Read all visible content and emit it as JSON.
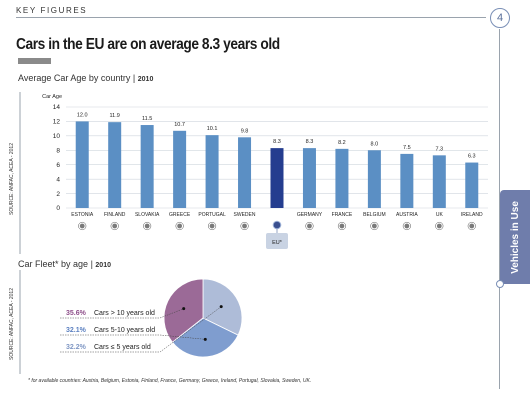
{
  "header": {
    "section_label": "KEY FIGURES",
    "page_number": "4"
  },
  "title": "Cars in the EU are on average 8.3 years old",
  "side_tab": "Vehicles in Use",
  "bar_chart": {
    "title": "Average Car Age by country",
    "year": "2010",
    "ylabel": "Car Age",
    "source": "SOURCE: ANFAC, ACEA - 2012"
  },
  "pie_chart": {
    "title": "Car Fleet* by age",
    "year": "2010",
    "source": "SOURCE: ANFAC, ACEA - 2012"
  },
  "footnote": "* for available countries: Austria, Belgium, Estonia, Finland, France, Germany, Greece, Ireland, Portugal, Slovakia, Sweden, UK.",
  "colors": {
    "bar": "#5b8fc4",
    "bar_highlight": "#243d8f",
    "pie_old": "#9b6a97",
    "pie_mid": "#7f9dcf",
    "pie_new": "#aebcd8",
    "side_tab": "#6f7dab"
  },
  "chart_data": [
    {
      "type": "bar",
      "title": "Average Car Age by country 2010",
      "ylabel": "Car Age",
      "ylim": [
        0,
        14
      ],
      "yticks": [
        0,
        2,
        4,
        6,
        8,
        10,
        12,
        14
      ],
      "categories": [
        "ESTONIA",
        "FINLAND",
        "SLOVAKIA",
        "GREECE",
        "PORTUGAL",
        "SWEDEN",
        "EU*",
        "GERMANY",
        "FRANCE",
        "BELGIUM",
        "AUSTRIA",
        "UK",
        "IRELAND"
      ],
      "values": [
        12.0,
        11.9,
        11.5,
        10.7,
        10.1,
        9.8,
        8.3,
        8.3,
        8.2,
        8.0,
        7.5,
        7.3,
        6.3
      ],
      "value_labels": [
        "12.0",
        "11.9",
        "11.5",
        "10.7",
        "10.1",
        "9.8",
        "8.3",
        "8.3",
        "8.2",
        "8.0",
        "7.5",
        "7.3",
        "6.3"
      ],
      "highlight": "EU*",
      "grid": true,
      "flag_icons": [
        "estonia-flag-icon",
        "finland-flag-icon",
        "slovakia-flag-icon",
        "greece-flag-icon",
        "portugal-flag-icon",
        "sweden-flag-icon",
        "eu-flag-icon",
        "germany-flag-icon",
        "france-flag-icon",
        "belgium-flag-icon",
        "austria-flag-icon",
        "uk-flag-icon",
        "ireland-flag-icon"
      ]
    },
    {
      "type": "pie",
      "title": "Car Fleet* by age 2010",
      "slices": [
        {
          "label": "Cars > 10 years old",
          "pct_label": "35.6%",
          "value": 35.6
        },
        {
          "label": "Cars 5-10 years old",
          "pct_label": "32.1%",
          "value": 32.1
        },
        {
          "label": "Cars ≤ 5 years old",
          "pct_label": "32.2%",
          "value": 32.2
        }
      ]
    }
  ]
}
